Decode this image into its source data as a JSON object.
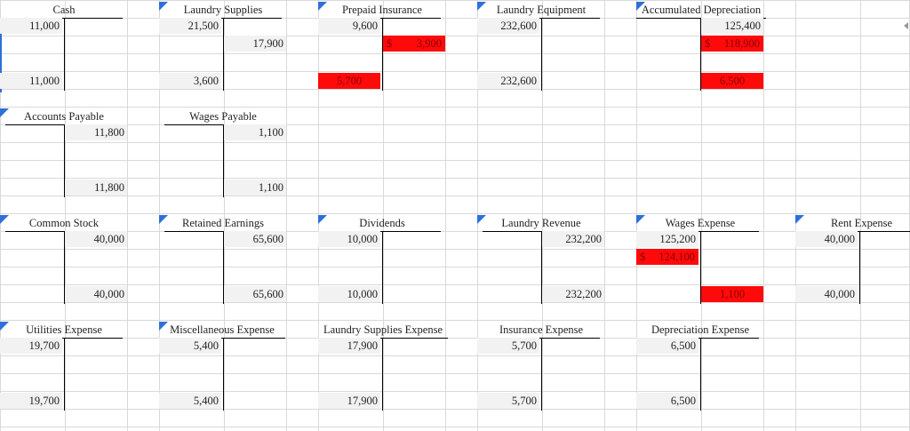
{
  "colors": {
    "highlight": "#ff0a0a",
    "corner_marker": "#2f6fd8"
  },
  "accounts": [
    {
      "title": "Cash",
      "debit_top": "11,000",
      "credit_top": "",
      "debit_mid": "",
      "credit_mid": "",
      "debit_bal": "11,000",
      "credit_bal": ""
    },
    {
      "title": "Laundry Supplies",
      "debit_top": "21,500",
      "credit_top": "",
      "debit_mid": "",
      "credit_mid": "17,900",
      "debit_bal": "3,600",
      "credit_bal": ""
    },
    {
      "title": "Prepaid Insurance",
      "debit_top": "9,600",
      "credit_top": "",
      "debit_mid": "",
      "credit_mid_red_sym": "$",
      "credit_mid_red_val": "3,900",
      "debit_bal_red": "5,700",
      "credit_bal": ""
    },
    {
      "title": "Laundry Equipment",
      "debit_top": "232,600",
      "credit_top": "",
      "debit_mid": "",
      "credit_mid": "",
      "debit_bal": "232,600",
      "credit_bal": ""
    },
    {
      "title": "Accumulated Depreciation",
      "debit_top": "",
      "credit_top": "125,400",
      "credit_mid_red_sym": "$",
      "credit_mid_red_val": "118,900",
      "credit_bal_red": "6,500"
    },
    {
      "title": "Accounts Payable",
      "credit_top": "11,800",
      "credit_bal": "11,800"
    },
    {
      "title": "Wages Payable",
      "credit_top": "1,100",
      "credit_bal": "1,100"
    },
    {
      "title": "Common Stock",
      "credit_top": "40,000",
      "credit_bal": "40,000"
    },
    {
      "title": "Retained Earnings",
      "credit_top": "65,600",
      "credit_bal": "65,600"
    },
    {
      "title": "Dividends",
      "debit_top": "10,000",
      "debit_bal": "10,000"
    },
    {
      "title": "Laundry Revenue",
      "credit_top": "232,200",
      "credit_bal": "232,200"
    },
    {
      "title": "Wages Expense",
      "debit_top": "125,200",
      "debit_mid_red_sym": "$",
      "debit_mid_red_val": "124,100",
      "credit_bal_red": "1,100"
    },
    {
      "title": "Rent Expense",
      "debit_top": "40,000",
      "debit_bal": "40,000"
    },
    {
      "title": "Utilities Expense",
      "debit_top": "19,700",
      "debit_bal": "19,700"
    },
    {
      "title": "Miscellaneous Expense",
      "debit_top": "5,400",
      "debit_bal": "5,400"
    },
    {
      "title": "Laundry Supplies Expense",
      "debit_top": "17,900",
      "debit_bal": "17,900"
    },
    {
      "title": "Insurance Expense",
      "debit_top": "5,700",
      "debit_bal": "5,700"
    },
    {
      "title": "Depreciation Expense",
      "debit_top": "6,500",
      "debit_bal": "6,500"
    }
  ]
}
